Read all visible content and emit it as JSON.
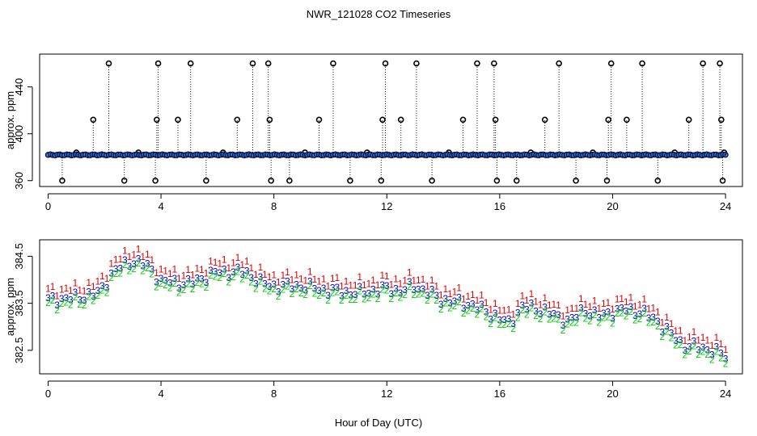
{
  "chart_data": {
    "title": "NWR_121028  CO2 Timeseries",
    "xlabel": "Hour of Day (UTC)",
    "panels": [
      {
        "id": "top",
        "type": "scatter",
        "ylabel": "approx. ppm",
        "xlim": [
          -0.3,
          24.6
        ],
        "ylim": [
          355,
          468
        ],
        "xticks": [
          "0",
          "4",
          "8",
          "12",
          "16",
          "20",
          "24"
        ],
        "yticks": [
          "360",
          "400",
          "440"
        ],
        "baseline": 382,
        "spikes": [
          {
            "x": 0.5,
            "y": 360
          },
          {
            "x": 1.0,
            "y": 384
          },
          {
            "x": 1.6,
            "y": 412
          },
          {
            "x": 2.15,
            "y": 460
          },
          {
            "x": 2.7,
            "y": 360
          },
          {
            "x": 3.2,
            "y": 384
          },
          {
            "x": 3.8,
            "y": 360
          },
          {
            "x": 3.85,
            "y": 412
          },
          {
            "x": 3.9,
            "y": 460
          },
          {
            "x": 4.6,
            "y": 412
          },
          {
            "x": 5.05,
            "y": 460
          },
          {
            "x": 5.6,
            "y": 360
          },
          {
            "x": 6.2,
            "y": 384
          },
          {
            "x": 6.7,
            "y": 412
          },
          {
            "x": 7.25,
            "y": 460
          },
          {
            "x": 7.8,
            "y": 460
          },
          {
            "x": 7.85,
            "y": 412
          },
          {
            "x": 7.9,
            "y": 360
          },
          {
            "x": 8.55,
            "y": 360
          },
          {
            "x": 9.1,
            "y": 384
          },
          {
            "x": 9.6,
            "y": 412
          },
          {
            "x": 10.1,
            "y": 460
          },
          {
            "x": 10.7,
            "y": 360
          },
          {
            "x": 11.3,
            "y": 384
          },
          {
            "x": 11.8,
            "y": 360
          },
          {
            "x": 11.85,
            "y": 412
          },
          {
            "x": 11.95,
            "y": 460
          },
          {
            "x": 12.5,
            "y": 412
          },
          {
            "x": 13.05,
            "y": 460
          },
          {
            "x": 13.6,
            "y": 360
          },
          {
            "x": 14.2,
            "y": 384
          },
          {
            "x": 14.7,
            "y": 412
          },
          {
            "x": 15.2,
            "y": 460
          },
          {
            "x": 15.8,
            "y": 460
          },
          {
            "x": 15.85,
            "y": 412
          },
          {
            "x": 15.9,
            "y": 360
          },
          {
            "x": 16.6,
            "y": 360
          },
          {
            "x": 17.1,
            "y": 384
          },
          {
            "x": 17.6,
            "y": 412
          },
          {
            "x": 18.1,
            "y": 460
          },
          {
            "x": 18.7,
            "y": 360
          },
          {
            "x": 19.3,
            "y": 384
          },
          {
            "x": 19.8,
            "y": 360
          },
          {
            "x": 19.85,
            "y": 412
          },
          {
            "x": 19.95,
            "y": 460
          },
          {
            "x": 20.5,
            "y": 412
          },
          {
            "x": 21.05,
            "y": 460
          },
          {
            "x": 21.6,
            "y": 360
          },
          {
            "x": 22.2,
            "y": 384
          },
          {
            "x": 22.7,
            "y": 412
          },
          {
            "x": 23.2,
            "y": 460
          },
          {
            "x": 23.8,
            "y": 460
          },
          {
            "x": 23.85,
            "y": 412
          },
          {
            "x": 23.9,
            "y": 360
          },
          {
            "x": 23.95,
            "y": 384
          }
        ]
      },
      {
        "id": "bottom",
        "type": "scatter",
        "ylabel": "approx. ppm",
        "xlim": [
          -0.3,
          24.6
        ],
        "ylim": [
          382.0,
          384.85
        ],
        "xticks": [
          "0",
          "4",
          "8",
          "12",
          "16",
          "20",
          "24"
        ],
        "yticks": [
          "382.5",
          "383.5",
          "384.5"
        ],
        "series": [
          {
            "name": "1",
            "color": "#e00000",
            "marker": "1"
          },
          {
            "name": "3",
            "color": "#0000cc",
            "marker": "3"
          },
          {
            "name": "2",
            "color": "#00cc00",
            "marker": "2"
          }
        ],
        "trend": [
          [
            0,
            383.55
          ],
          [
            1,
            383.6
          ],
          [
            1.8,
            383.7
          ],
          [
            2.3,
            384.15
          ],
          [
            3,
            384.4
          ],
          [
            3.6,
            384.25
          ],
          [
            4,
            383.95
          ],
          [
            5,
            383.9
          ],
          [
            6,
            384.15
          ],
          [
            7,
            384.15
          ],
          [
            7.6,
            383.9
          ],
          [
            8,
            383.85
          ],
          [
            9,
            383.85
          ],
          [
            10,
            383.75
          ],
          [
            11,
            383.7
          ],
          [
            12,
            383.8
          ],
          [
            12.5,
            383.75
          ],
          [
            13,
            383.85
          ],
          [
            14,
            383.55
          ],
          [
            15,
            383.45
          ],
          [
            15.9,
            383.2
          ],
          [
            16.3,
            383.05
          ],
          [
            16.8,
            383.4
          ],
          [
            17.5,
            383.35
          ],
          [
            18,
            383.2
          ],
          [
            18.5,
            383.1
          ],
          [
            19,
            383.35
          ],
          [
            19.5,
            383.2
          ],
          [
            20,
            383.3
          ],
          [
            20.5,
            383.35
          ],
          [
            21,
            383.3
          ],
          [
            21.6,
            383.1
          ],
          [
            22,
            382.85
          ],
          [
            22.5,
            382.6
          ],
          [
            23,
            382.55
          ],
          [
            23.5,
            382.5
          ],
          [
            24,
            382.35
          ]
        ]
      }
    ]
  }
}
